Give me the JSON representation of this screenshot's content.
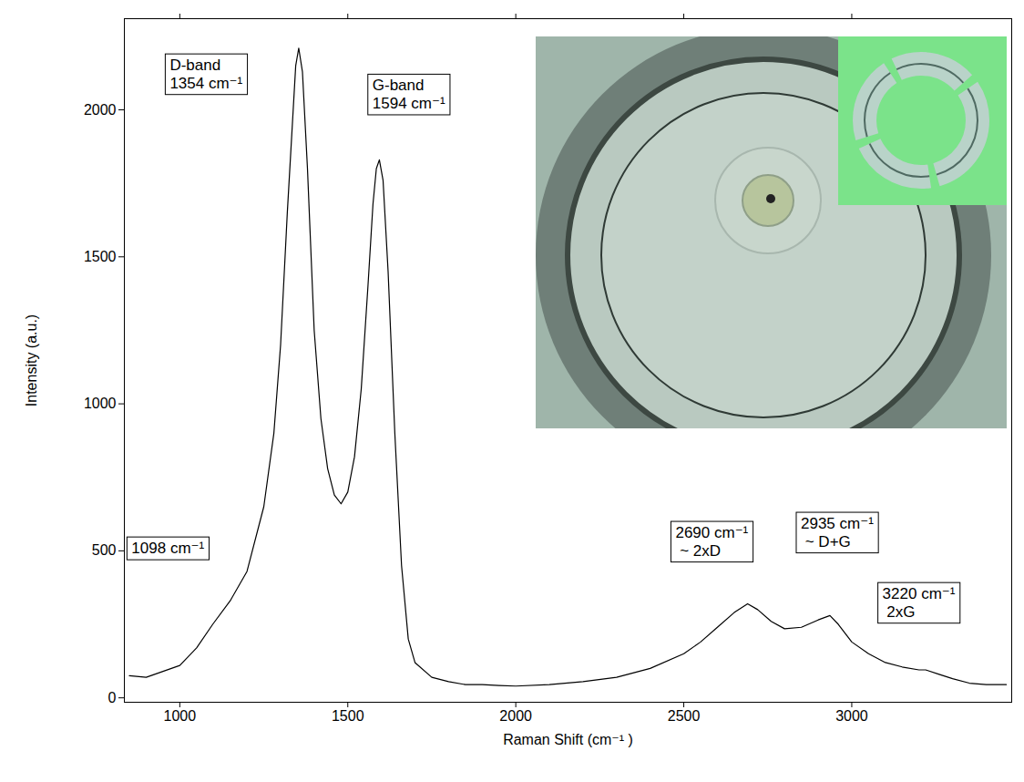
{
  "chart_data": {
    "type": "line",
    "x_label": "Raman Shift (cm⁻¹ )",
    "y_label": "Intensity (a.u.)",
    "xlim": [
      835,
      3476
    ],
    "ylim": [
      -15,
      2310
    ],
    "xticks": [
      1000,
      1500,
      2000,
      2500,
      3000
    ],
    "yticks": [
      0,
      500,
      1000,
      1500,
      2000
    ],
    "grid": false,
    "color": "#000000",
    "x": [
      850,
      900,
      950,
      1000,
      1050,
      1098,
      1150,
      1200,
      1250,
      1280,
      1300,
      1320,
      1335,
      1345,
      1354,
      1365,
      1380,
      1400,
      1420,
      1440,
      1460,
      1480,
      1500,
      1520,
      1540,
      1560,
      1575,
      1585,
      1594,
      1605,
      1620,
      1640,
      1660,
      1680,
      1700,
      1750,
      1800,
      1850,
      1900,
      1950,
      2000,
      2100,
      2200,
      2300,
      2400,
      2500,
      2550,
      2600,
      2650,
      2690,
      2720,
      2760,
      2800,
      2850,
      2900,
      2935,
      2960,
      3000,
      3050,
      3100,
      3150,
      3200,
      3220,
      3260,
      3300,
      3350,
      3400,
      3460
    ],
    "values": [
      75,
      70,
      90,
      110,
      170,
      250,
      330,
      430,
      650,
      900,
      1200,
      1650,
      1950,
      2150,
      2210,
      2130,
      1800,
      1250,
      950,
      780,
      690,
      660,
      700,
      820,
      1050,
      1400,
      1680,
      1800,
      1830,
      1760,
      1450,
      900,
      450,
      200,
      120,
      70,
      55,
      45,
      45,
      42,
      40,
      45,
      55,
      70,
      100,
      150,
      190,
      240,
      290,
      320,
      300,
      260,
      235,
      240,
      265,
      280,
      250,
      190,
      150,
      120,
      105,
      95,
      95,
      80,
      65,
      50,
      45,
      45
    ],
    "annotations": [
      {
        "text": [
          "D-band",
          "1354 cm⁻¹"
        ],
        "x": 954,
        "y": 2196
      },
      {
        "text": [
          "G-band",
          "1594 cm⁻¹"
        ],
        "x": 1557,
        "y": 2127
      },
      {
        "text": [
          "1098 cm⁻¹"
        ],
        "x": 840,
        "y": 553
      },
      {
        "text": [
          "2690 cm⁻¹",
          " ~ 2xD"
        ],
        "x": 2459,
        "y": 606
      },
      {
        "text": [
          "2935 cm⁻¹",
          " ~ D+G"
        ],
        "x": 2832,
        "y": 637
      },
      {
        "text": [
          "3220 cm⁻¹",
          " 2xG"
        ],
        "x": 3075,
        "y": 398
      }
    ]
  }
}
